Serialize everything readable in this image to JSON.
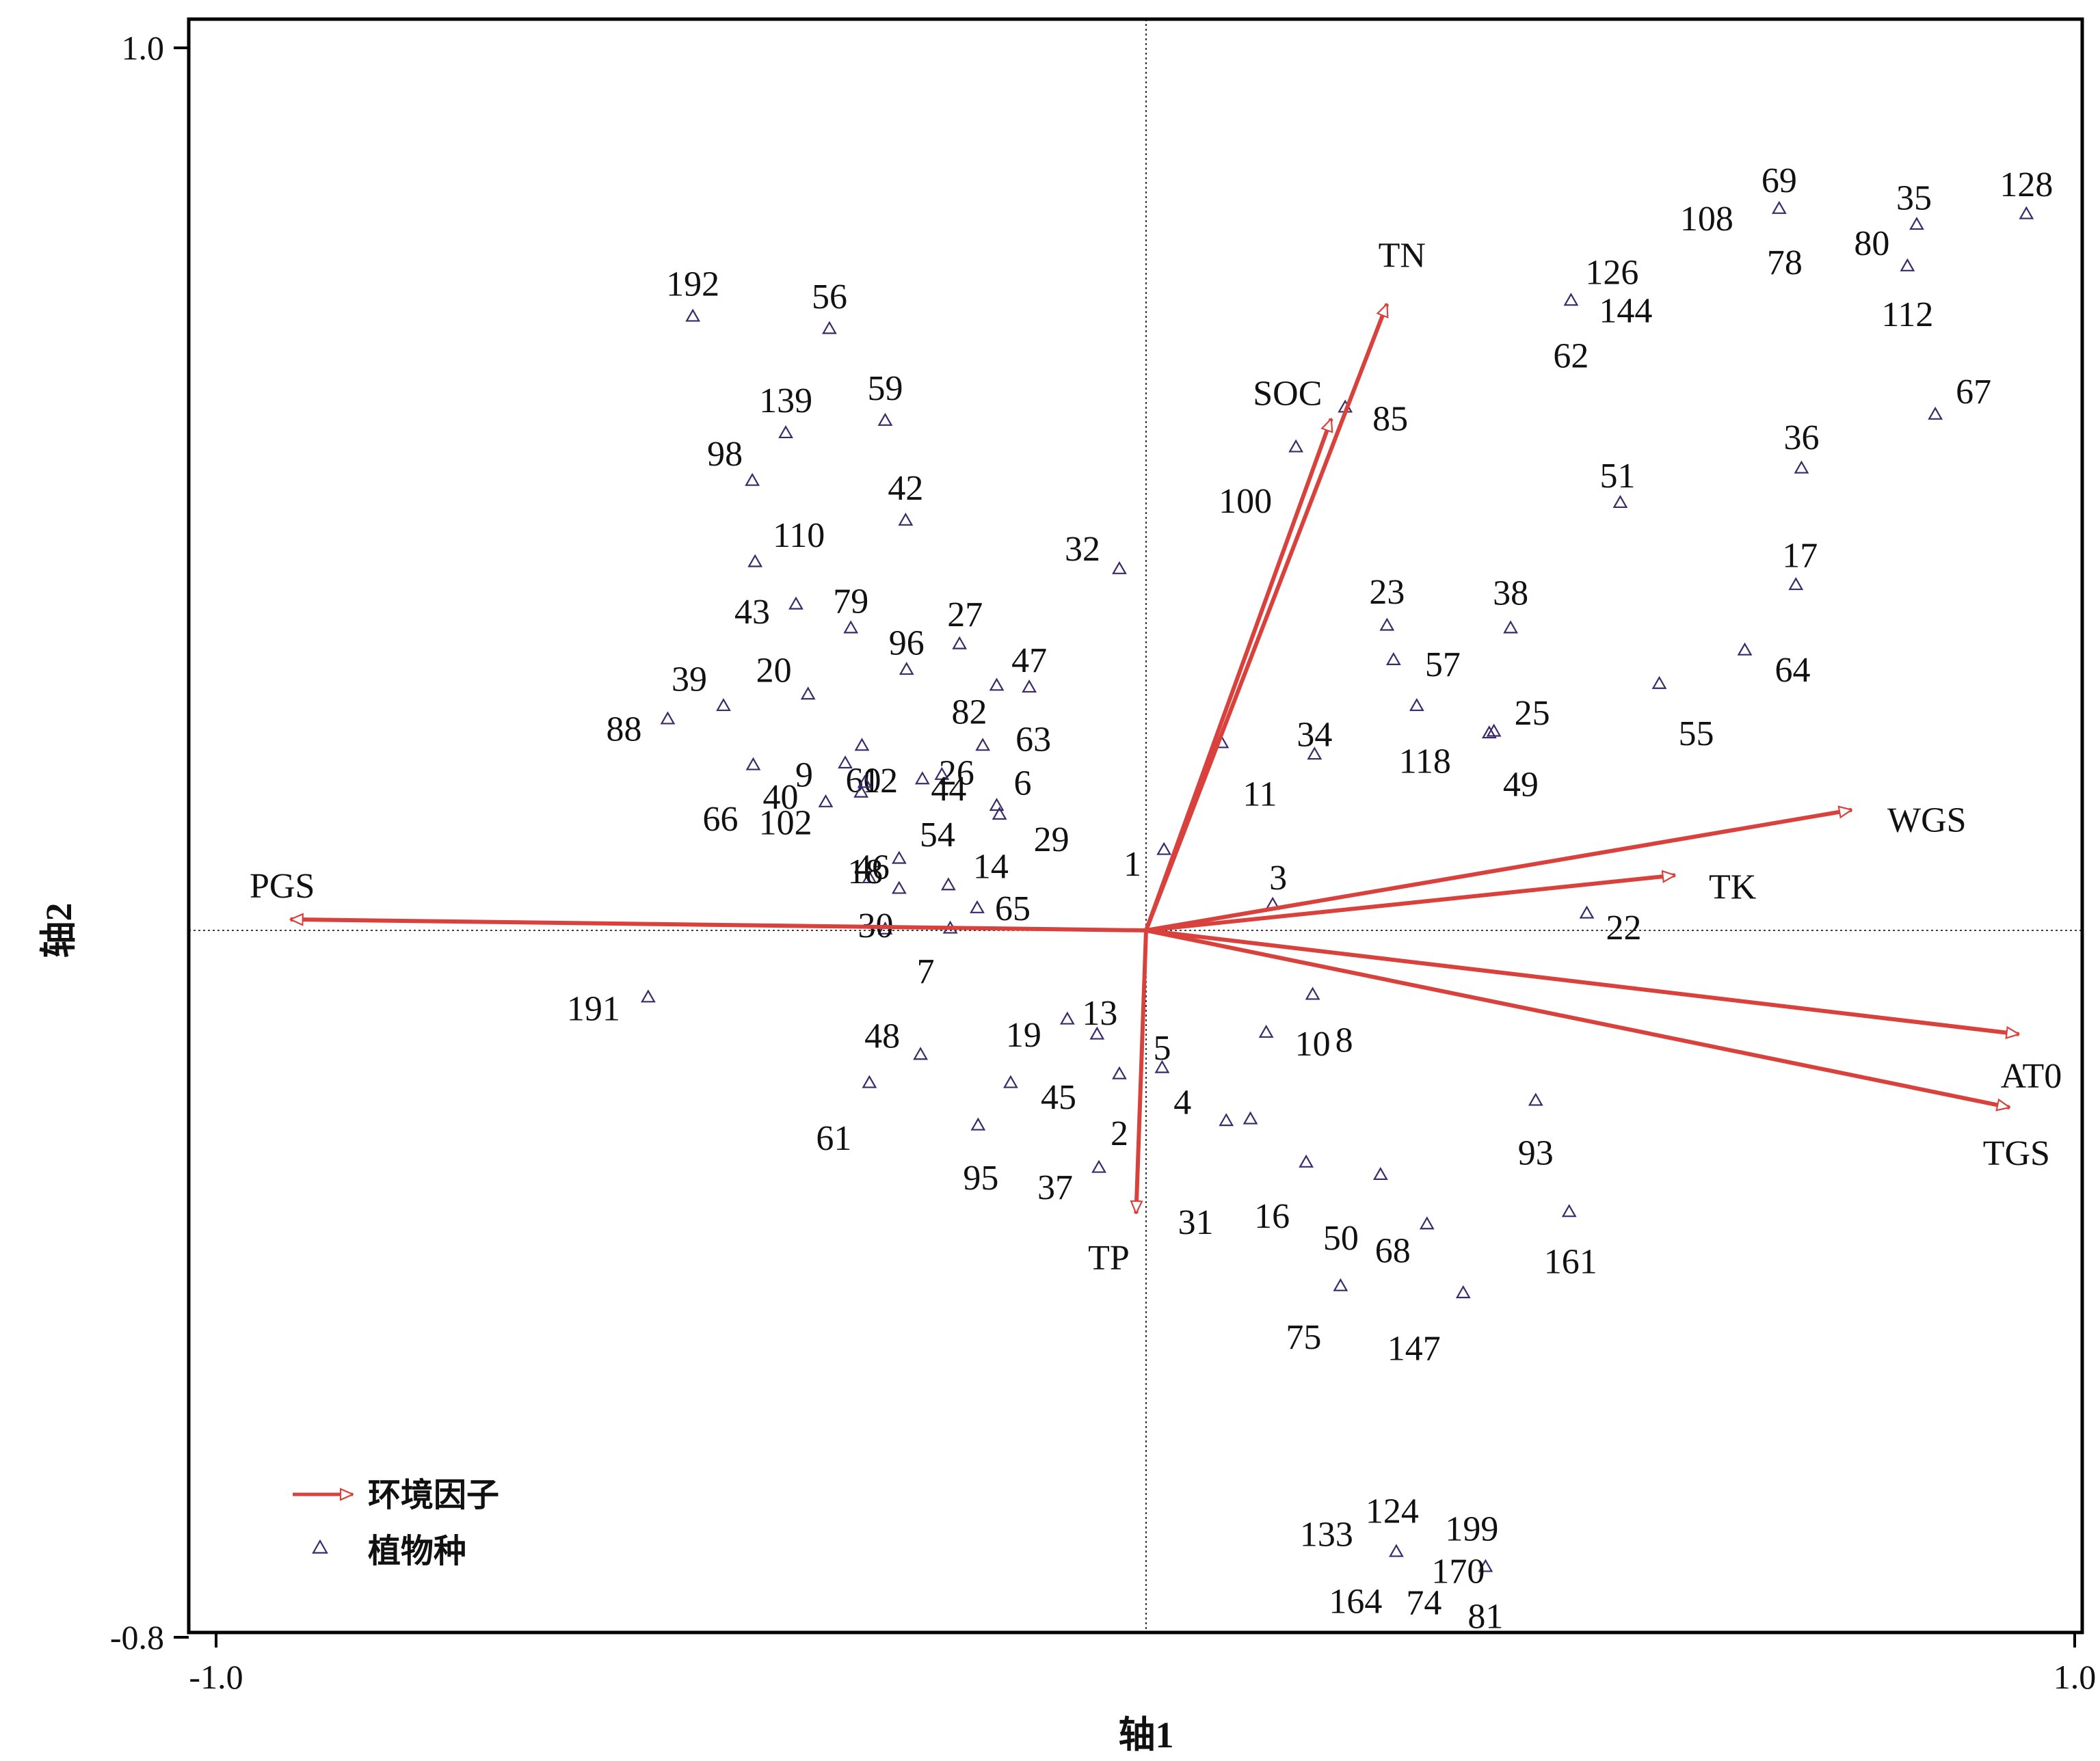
{
  "chart_data": {
    "type": "scatter",
    "title": "",
    "xlabel": "轴1",
    "ylabel": "轴2",
    "xlim": [
      -1.0,
      1.0
    ],
    "ylim": [
      -0.8,
      1.0
    ],
    "x_ticks": [
      "-1.0",
      "1.0"
    ],
    "y_ticks": [
      "1.0",
      "-0.8"
    ],
    "grid": false,
    "legend_position": "bottom-left",
    "legend": [
      {
        "label": "环境因子",
        "marker": "arrow",
        "color": "#d9413c"
      },
      {
        "label": "植物种",
        "marker": "triangle",
        "color": "#3b2a6b"
      }
    ],
    "vectors": [
      {
        "name": "PGS",
        "x": -0.92,
        "y": 0.013
      },
      {
        "name": "TN",
        "x": 0.26,
        "y": 0.71
      },
      {
        "name": "SOC",
        "x": 0.2,
        "y": 0.58
      },
      {
        "name": "WGS",
        "x": 0.76,
        "y": 0.137
      },
      {
        "name": "TK",
        "x": 0.57,
        "y": 0.063
      },
      {
        "name": "AT0",
        "x": 0.94,
        "y": -0.117
      },
      {
        "name": "TGS",
        "x": 0.93,
        "y": -0.2
      },
      {
        "name": "TP",
        "x": -0.01,
        "y": -0.32
      }
    ],
    "species_points": [
      {
        "label": "192",
        "x": -0.487,
        "y": 0.696
      },
      {
        "label": "56",
        "x": -0.34,
        "y": 0.682
      },
      {
        "label": "139",
        "x": -0.387,
        "y": 0.564
      },
      {
        "label": "59",
        "x": -0.28,
        "y": 0.578
      },
      {
        "label": "98",
        "x": -0.423,
        "y": 0.51
      },
      {
        "label": "42",
        "x": -0.258,
        "y": 0.465
      },
      {
        "label": "110",
        "x": -0.42,
        "y": 0.418
      },
      {
        "label": "43",
        "x": -0.376,
        "y": 0.37
      },
      {
        "label": "79",
        "x": -0.317,
        "y": 0.343
      },
      {
        "label": "27",
        "x": -0.2,
        "y": 0.325
      },
      {
        "label": "96",
        "x": -0.257,
        "y": 0.296
      },
      {
        "label": "47",
        "x": -0.125,
        "y": 0.276
      },
      {
        "label": "39",
        "x": -0.454,
        "y": 0.255
      },
      {
        "label": "88",
        "x": -0.514,
        "y": 0.24
      },
      {
        "label": "20",
        "x": -0.363,
        "y": 0.268
      },
      {
        "label": "82",
        "x": -0.16,
        "y": 0.278
      },
      {
        "label": "60",
        "x": -0.305,
        "y": 0.21
      },
      {
        "label": "63",
        "x": -0.175,
        "y": 0.21
      },
      {
        "label": "9",
        "x": -0.323,
        "y": 0.19
      },
      {
        "label": "26",
        "x": -0.24,
        "y": 0.172
      },
      {
        "label": "44",
        "x": -0.219,
        "y": 0.177
      },
      {
        "label": "6",
        "x": -0.16,
        "y": 0.142
      },
      {
        "label": "66",
        "x": -0.422,
        "y": 0.188
      },
      {
        "label": "40",
        "x": -0.344,
        "y": 0.146
      },
      {
        "label": "12",
        "x": -0.306,
        "y": 0.157
      },
      {
        "label": "29",
        "x": -0.157,
        "y": 0.132
      },
      {
        "label": "102",
        "x": -0.302,
        "y": 0.168
      },
      {
        "label": "18",
        "x": -0.297,
        "y": 0.06
      },
      {
        "label": "54",
        "x": -0.265,
        "y": 0.082
      },
      {
        "label": "14",
        "x": -0.212,
        "y": 0.052
      },
      {
        "label": "46",
        "x": -0.265,
        "y": 0.048
      },
      {
        "label": "30",
        "x": -0.28,
        "y": 0.002
      },
      {
        "label": "65",
        "x": -0.181,
        "y": 0.026
      },
      {
        "label": "7",
        "x": -0.21,
        "y": 0.003
      },
      {
        "label": "1",
        "x": 0.02,
        "y": 0.092
      },
      {
        "label": "32",
        "x": -0.028,
        "y": 0.41
      },
      {
        "label": "191",
        "x": -0.535,
        "y": -0.075
      },
      {
        "label": "48",
        "x": -0.242,
        "y": -0.14
      },
      {
        "label": "61",
        "x": -0.297,
        "y": -0.172
      },
      {
        "label": "19",
        "x": -0.084,
        "y": -0.1
      },
      {
        "label": "13",
        "x": -0.052,
        "y": -0.117
      },
      {
        "label": "5",
        "x": 0.018,
        "y": -0.155
      },
      {
        "label": "2",
        "x": -0.028,
        "y": -0.162
      },
      {
        "label": "45",
        "x": -0.145,
        "y": -0.172
      },
      {
        "label": "95",
        "x": -0.18,
        "y": -0.22
      },
      {
        "label": "37",
        "x": -0.05,
        "y": -0.268
      },
      {
        "label": "31",
        "x": 0.113,
        "y": -0.213
      },
      {
        "label": "4",
        "x": 0.087,
        "y": -0.215
      },
      {
        "label": "10",
        "x": 0.13,
        "y": -0.115
      },
      {
        "label": "8",
        "x": 0.18,
        "y": -0.072
      },
      {
        "label": "16",
        "x": 0.173,
        "y": -0.262
      },
      {
        "label": "50",
        "x": 0.253,
        "y": -0.276
      },
      {
        "label": "68",
        "x": 0.303,
        "y": -0.332
      },
      {
        "label": "161",
        "x": 0.456,
        "y": -0.318
      },
      {
        "label": "93",
        "x": 0.42,
        "y": -0.192
      },
      {
        "label": "75",
        "x": 0.21,
        "y": -0.402
      },
      {
        "label": "147",
        "x": 0.342,
        "y": -0.41
      },
      {
        "label": "3",
        "x": 0.137,
        "y": 0.03
      },
      {
        "label": "22",
        "x": 0.475,
        "y": 0.02
      },
      {
        "label": "100",
        "x": 0.162,
        "y": 0.548
      },
      {
        "label": "85",
        "x": 0.215,
        "y": 0.593
      },
      {
        "label": "11",
        "x": 0.082,
        "y": 0.213
      },
      {
        "label": "34",
        "x": 0.182,
        "y": 0.2
      },
      {
        "label": "23",
        "x": 0.26,
        "y": 0.346
      },
      {
        "label": "57",
        "x": 0.267,
        "y": 0.307
      },
      {
        "label": "38",
        "x": 0.393,
        "y": 0.343
      },
      {
        "label": "25",
        "x": 0.375,
        "y": 0.226
      },
      {
        "label": "118",
        "x": 0.292,
        "y": 0.255
      },
      {
        "label": "49",
        "x": 0.37,
        "y": 0.224
      },
      {
        "label": "51",
        "x": 0.511,
        "y": 0.485
      },
      {
        "label": "55",
        "x": 0.553,
        "y": 0.28
      },
      {
        "label": "64",
        "x": 0.645,
        "y": 0.318
      },
      {
        "label": "17",
        "x": 0.7,
        "y": 0.392
      },
      {
        "label": "36",
        "x": 0.706,
        "y": 0.524
      },
      {
        "label": "67",
        "x": 0.85,
        "y": 0.585
      },
      {
        "label": "126",
        "x": 0.458,
        "y": 0.714
      },
      {
        "label": "144",
        "x": 0.458,
        "y": 0.714
      },
      {
        "label": "62",
        "x": 0.458,
        "y": 0.714
      },
      {
        "label": "108",
        "x": 0.682,
        "y": 0.818
      },
      {
        "label": "69",
        "x": 0.682,
        "y": 0.818
      },
      {
        "label": "78",
        "x": 0.682,
        "y": 0.818
      },
      {
        "label": "35",
        "x": 0.83,
        "y": 0.8
      },
      {
        "label": "80",
        "x": 0.82,
        "y": 0.753
      },
      {
        "label": "112",
        "x": 0.82,
        "y": 0.753
      },
      {
        "label": "128",
        "x": 0.948,
        "y": 0.812
      },
      {
        "label": "133",
        "x": 0.27,
        "y": -0.703
      },
      {
        "label": "124",
        "x": 0.27,
        "y": -0.703
      },
      {
        "label": "199",
        "x": 0.366,
        "y": -0.72
      },
      {
        "label": "170",
        "x": 0.366,
        "y": -0.72
      },
      {
        "label": "164",
        "x": 0.366,
        "y": -0.72
      },
      {
        "label": "74",
        "x": 0.366,
        "y": -0.72
      },
      {
        "label": "81",
        "x": 0.366,
        "y": -0.72
      }
    ]
  }
}
